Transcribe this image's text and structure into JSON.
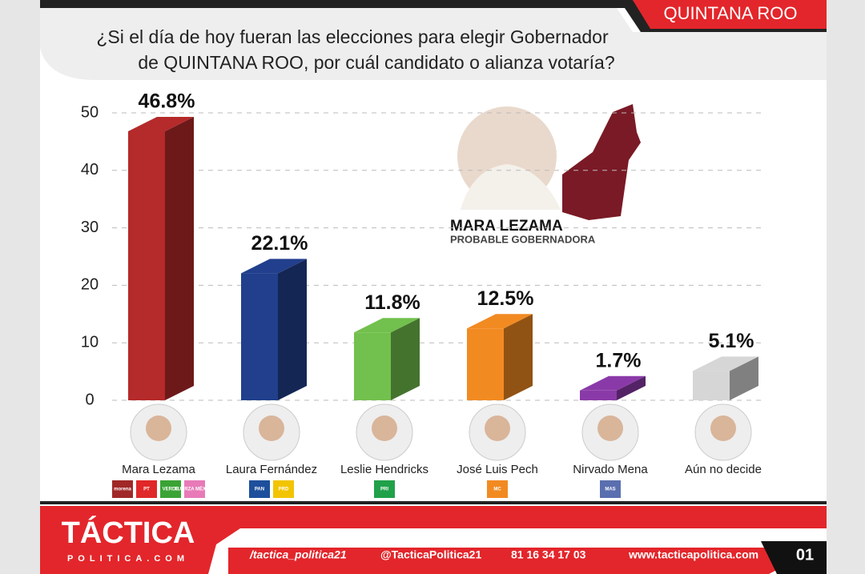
{
  "chart_data": {
    "type": "bar3d",
    "header": "QUINTANA ROO",
    "question": [
      "¿Si el día de hoy fueran las elecciones para elegir Gobernador",
      "de QUINTANA ROO, por cuál candidato o alianza votaría?"
    ],
    "categories": [
      "Mara Lezama",
      "Laura Fernández",
      "Leslie Hendricks",
      "José Luis Pech",
      "Nirvado Mena",
      "Aún no decide"
    ],
    "values": [
      46.8,
      22.1,
      11.8,
      12.5,
      1.7,
      5.1
    ],
    "value_labels": [
      "46.8%",
      "22.1%",
      "11.8%",
      "12.5%",
      "1.7%",
      "5.1%"
    ],
    "colors": [
      "#b52a2a",
      "#213f8c",
      "#72c04d",
      "#f28a22",
      "#8a3aa8",
      "#d6d6d6"
    ],
    "parties": [
      [
        "morena",
        "PT",
        "VERDE",
        "FUERZA MÉXICO"
      ],
      [
        "PAN",
        "PRD"
      ],
      [
        "PRI"
      ],
      [
        "MC"
      ],
      [
        "MAS"
      ],
      []
    ],
    "party_colors": [
      [
        "#a02828",
        "#e02828",
        "#3aa335",
        "#e87ab8"
      ],
      [
        "#1d4f9c",
        "#f2c400"
      ],
      [
        "#21a14a"
      ],
      [
        "#f28a22"
      ],
      [
        "#5a6fb0"
      ],
      []
    ],
    "ylim": [
      0,
      50
    ],
    "yticks": [
      0,
      10,
      20,
      30,
      40,
      50
    ],
    "grid": true,
    "featured_name": "MARA LEZAMA",
    "featured_role": "PROBABLE GOBERNADORA",
    "footer": {
      "brand": "TÁCTICA",
      "brand_sub": "POLITICA.COM",
      "facebook": "/tactica_politica21",
      "instagram": "@TacticaPolitica21",
      "phone": "81 16 34 17 03",
      "web": "www.tacticapolitica.com",
      "page": "01"
    }
  }
}
